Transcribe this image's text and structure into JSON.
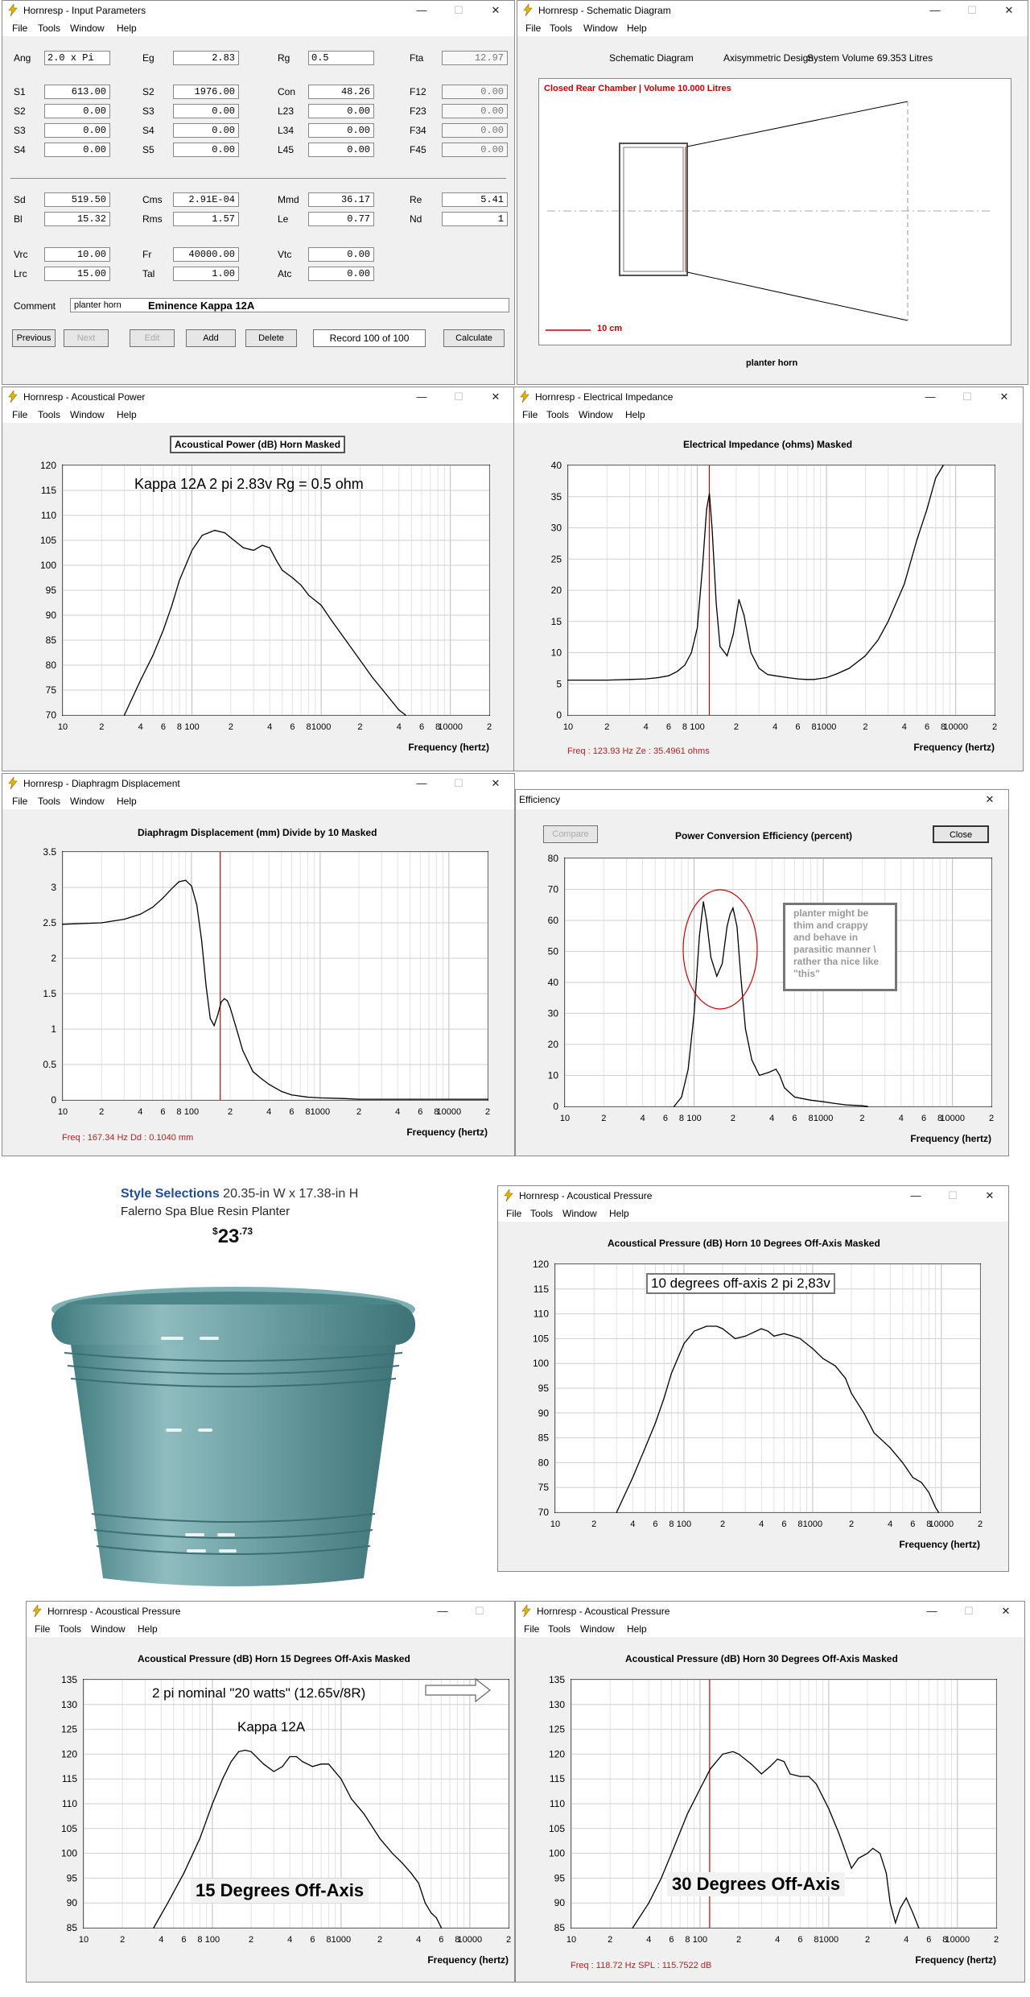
{
  "input_params": {
    "title": "Hornresp - Input Parameters",
    "menu": [
      "File",
      "Tools",
      "Window",
      "Help"
    ],
    "fields": [
      {
        "label": "Ang",
        "value": "2.0 x Pi",
        "row": 0,
        "col": 0
      },
      {
        "label": "Eg",
        "value": "2.83",
        "row": 0,
        "col": 1
      },
      {
        "label": "Rg",
        "value": "0.5",
        "row": 0,
        "col": 2
      },
      {
        "label": "Fta",
        "value": "12.97",
        "row": 0,
        "col": 3,
        "dim": true
      },
      {
        "label": "S1",
        "value": "613.00",
        "row": 1,
        "col": 0
      },
      {
        "label": "S2",
        "value": "1976.00",
        "row": 1,
        "col": 1
      },
      {
        "label": "Con",
        "value": "48.26",
        "row": 1,
        "col": 2
      },
      {
        "label": "F12",
        "value": "0.00",
        "row": 1,
        "col": 3,
        "dim": true
      },
      {
        "label": "S2",
        "value": "0.00",
        "row": 2,
        "col": 0
      },
      {
        "label": "S3",
        "value": "0.00",
        "row": 2,
        "col": 1
      },
      {
        "label": "L23",
        "value": "0.00",
        "row": 2,
        "col": 2
      },
      {
        "label": "F23",
        "value": "0.00",
        "row": 2,
        "col": 3,
        "dim": true
      },
      {
        "label": "S3",
        "value": "0.00",
        "row": 3,
        "col": 0
      },
      {
        "label": "S4",
        "value": "0.00",
        "row": 3,
        "col": 1
      },
      {
        "label": "L34",
        "value": "0.00",
        "row": 3,
        "col": 2
      },
      {
        "label": "F34",
        "value": "0.00",
        "row": 3,
        "col": 3,
        "dim": true
      },
      {
        "label": "S4",
        "value": "0.00",
        "row": 4,
        "col": 0
      },
      {
        "label": "S5",
        "value": "0.00",
        "row": 4,
        "col": 1
      },
      {
        "label": "L45",
        "value": "0.00",
        "row": 4,
        "col": 2
      },
      {
        "label": "F45",
        "value": "0.00",
        "row": 4,
        "col": 3,
        "dim": true
      },
      {
        "label": "Sd",
        "value": "519.50",
        "row": 5,
        "col": 0
      },
      {
        "label": "Cms",
        "value": "2.91E-04",
        "row": 5,
        "col": 1
      },
      {
        "label": "Mmd",
        "value": "36.17",
        "row": 5,
        "col": 2
      },
      {
        "label": "Re",
        "value": "5.41",
        "row": 5,
        "col": 3
      },
      {
        "label": "Bl",
        "value": "15.32",
        "row": 6,
        "col": 0
      },
      {
        "label": "Rms",
        "value": "1.57",
        "row": 6,
        "col": 1
      },
      {
        "label": "Le",
        "value": "0.77",
        "row": 6,
        "col": 2
      },
      {
        "label": "Nd",
        "value": "1",
        "row": 6,
        "col": 3
      },
      {
        "label": "Vrc",
        "value": "10.00",
        "row": 7,
        "col": 0
      },
      {
        "label": "Fr",
        "value": "40000.00",
        "row": 7,
        "col": 1
      },
      {
        "label": "Vtc",
        "value": "0.00",
        "row": 7,
        "col": 2
      },
      {
        "label": "Lrc",
        "value": "15.00",
        "row": 8,
        "col": 0
      },
      {
        "label": "Tal",
        "value": "1.00",
        "row": 8,
        "col": 1
      },
      {
        "label": "Atc",
        "value": "0.00",
        "row": 8,
        "col": 2
      }
    ],
    "comment_label": "Comment",
    "comment_value": "planter horn",
    "comment_bold": "Eminence Kappa 12A",
    "buttons": {
      "previous": "Previous",
      "next": "Next",
      "edit": "Edit",
      "add": "Add",
      "delete": "Delete",
      "record": "Record 100 of 100",
      "calculate": "Calculate"
    }
  },
  "schematic": {
    "title": "Hornresp - Schematic Diagram",
    "menu": [
      "File",
      "Tools",
      "Window",
      "Help"
    ],
    "header": [
      "Schematic Diagram",
      "Axisymmetric Design",
      "System Volume 69.353 Litres"
    ],
    "chamber": "Closed Rear Chamber | Volume 10.000 Litres",
    "scale": "10 cm",
    "caption": "planter horn"
  },
  "freq_ticks": [
    "10",
    "2",
    "4",
    "6",
    "8",
    "100",
    "2",
    "4",
    "6",
    "8",
    "1000",
    "2",
    "4",
    "6",
    "8",
    "10000",
    "2"
  ],
  "xlabel": "Frequency (hertz)",
  "colors": {
    "readout": "#b22222",
    "accent_red": "#cc0000"
  },
  "ap": {
    "title": "Hornresp - Acoustical Power",
    "menu": [
      "File",
      "Tools",
      "Window",
      "Help"
    ],
    "chart_title": "Acoustical Power (dB)  Horn  Masked",
    "note": "Kappa 12A  2 pi  2.83v  Rg = 0.5 ohm"
  },
  "ei": {
    "title": "Hornresp - Electrical Impedance",
    "menu": [
      "File",
      "Tools",
      "Window",
      "Help"
    ],
    "chart_title": "Electrical Impedance (ohms)  Masked",
    "readout": "Freq : 123.93 Hz    Ze : 35.4961 ohms"
  },
  "dd": {
    "title": "Hornresp - Diaphragm Displacement",
    "menu": [
      "File",
      "Tools",
      "Window",
      "Help"
    ],
    "chart_title": "Diaphragm Displacement (mm)  Divide by 10  Masked",
    "readout": "Freq : 167.34 Hz    Dd : 0.1040 mm"
  },
  "eff": {
    "title": "Efficiency",
    "compare": "Compare",
    "close": "Close",
    "chart_title": "Power Conversion Efficiency (percent)",
    "note": "planter might be thim and crappy and behave in parasitic manner \\ rather tha nice like \"this\""
  },
  "product": {
    "brand": "Style Selections",
    "dims": "20.35-in W x 17.38-in H",
    "name": "Falerno Spa Blue Resin Planter",
    "currency": "$",
    "price_whole": "23",
    "price_cents": ".73"
  },
  "p10": {
    "title": "Hornresp - Acoustical Pressure",
    "menu": [
      "File",
      "Tools",
      "Window",
      "Help"
    ],
    "chart_title": "Acoustical Pressure (dB)  Horn  10 Degrees Off-Axis  Masked",
    "note": "10 degrees off-axis  2 pi 2,83v"
  },
  "p15": {
    "title": "Hornresp - Acoustical Pressure",
    "menu": [
      "File",
      "Tools",
      "Window",
      "Help"
    ],
    "chart_title": "Acoustical Pressure (dB)  Horn  15 Degrees Off-Axis  Masked",
    "note1": "2 pi  nominal \"20 watts\"  (12.65v/8R)",
    "note2": "Kappa 12A",
    "big": "15 Degrees Off-Axis"
  },
  "p30": {
    "title": "Hornresp - Acoustical Pressure",
    "menu": [
      "File",
      "Tools",
      "Window",
      "Help"
    ],
    "chart_title": "Acoustical Pressure (dB)  Horn  30 Degrees Off-Axis  Masked",
    "readout": "Freq : 118.72 Hz    SPL : 115.7522 dB",
    "big": "30 Degrees Off-Axis"
  },
  "chart_data": [
    {
      "id": "ap",
      "type": "line",
      "title": "Acoustical Power (dB)  Horn  Masked",
      "xlabel": "Frequency (hertz)",
      "xscale": "log",
      "xlim": [
        10,
        20000
      ],
      "ylim": [
        70,
        120
      ],
      "yticks": [
        70,
        75,
        80,
        85,
        90,
        95,
        100,
        105,
        110,
        115,
        120
      ],
      "series": [
        {
          "x": [
            30,
            40,
            50,
            60,
            70,
            80,
            100,
            120,
            150,
            180,
            200,
            250,
            300,
            350,
            400,
            450,
            500,
            600,
            700,
            800,
            1000,
            1200,
            1500,
            2000,
            2500,
            3000,
            4000,
            4500
          ],
          "y": [
            70,
            77,
            82,
            87,
            92,
            97,
            103,
            106,
            107,
            106.5,
            105.5,
            103.5,
            103,
            104,
            103.5,
            101,
            99,
            97.5,
            96,
            94,
            92,
            89,
            85.5,
            81,
            77.5,
            75,
            71,
            70
          ]
        }
      ]
    },
    {
      "id": "ei",
      "type": "line",
      "title": "Electrical Impedance (ohms)  Masked",
      "xlabel": "Frequency (hertz)",
      "xscale": "log",
      "xlim": [
        10,
        20000
      ],
      "ylim": [
        0,
        40
      ],
      "yticks": [
        0,
        5,
        10,
        15,
        20,
        25,
        30,
        35,
        40
      ],
      "marker_x": 123.93,
      "series": [
        {
          "x": [
            10,
            20,
            30,
            40,
            50,
            60,
            70,
            80,
            90,
            100,
            110,
            118,
            124,
            130,
            140,
            150,
            170,
            190,
            210,
            230,
            260,
            300,
            350,
            400,
            500,
            600,
            700,
            800,
            1000,
            1200,
            1500,
            2000,
            2500,
            3000,
            4000,
            5000,
            6000,
            7000,
            8000
          ],
          "y": [
            5.6,
            5.6,
            5.7,
            5.8,
            6,
            6.3,
            7,
            8,
            10,
            14,
            24,
            33,
            35.5,
            30,
            18,
            11,
            9.5,
            13,
            18.5,
            16,
            10,
            7.5,
            6.5,
            6.3,
            6,
            5.8,
            5.7,
            5.7,
            6,
            6.6,
            7.5,
            9.5,
            12,
            15,
            21,
            28,
            33,
            38,
            40
          ]
        }
      ]
    },
    {
      "id": "dd",
      "type": "line",
      "title": "Diaphragm Displacement (mm)  Divide by 10  Masked",
      "xlabel": "Frequency (hertz)",
      "xscale": "log",
      "xlim": [
        10,
        20000
      ],
      "ylim": [
        0,
        3.5
      ],
      "yticks": [
        0,
        0.5,
        1,
        1.5,
        2,
        2.5,
        3,
        3.5
      ],
      "marker_x": 167.34,
      "series": [
        {
          "x": [
            10,
            20,
            30,
            40,
            50,
            60,
            70,
            80,
            90,
            100,
            110,
            120,
            130,
            140,
            150,
            160,
            170,
            180,
            190,
            200,
            220,
            250,
            300,
            350,
            400,
            500,
            600,
            800,
            1000,
            1500,
            2000,
            5000,
            20000
          ],
          "y": [
            2.48,
            2.5,
            2.55,
            2.62,
            2.72,
            2.85,
            2.98,
            3.08,
            3.1,
            3.02,
            2.75,
            2.25,
            1.6,
            1.15,
            1.05,
            1.2,
            1.38,
            1.43,
            1.4,
            1.3,
            1.05,
            0.7,
            0.4,
            0.3,
            0.22,
            0.12,
            0.07,
            0.04,
            0.03,
            0.02,
            0.01,
            0.01,
            0.01
          ]
        }
      ]
    },
    {
      "id": "eff",
      "type": "line",
      "title": "Power Conversion Efficiency (percent)",
      "xlabel": "Frequency (hertz)",
      "xscale": "log",
      "xlim": [
        10,
        20000
      ],
      "ylim": [
        0,
        80
      ],
      "yticks": [
        0,
        10,
        20,
        30,
        40,
        50,
        60,
        70,
        80
      ],
      "series": [
        {
          "x": [
            70,
            80,
            90,
            100,
            110,
            118,
            125,
            135,
            150,
            165,
            180,
            190,
            200,
            215,
            230,
            250,
            280,
            320,
            380,
            430,
            460,
            500,
            600,
            800,
            1000,
            1200,
            1500,
            2000,
            2200
          ],
          "y": [
            0,
            3,
            12,
            30,
            55,
            66,
            60,
            48,
            42,
            46,
            58,
            62,
            64,
            58,
            42,
            25,
            15,
            10,
            11,
            12,
            10,
            6,
            3,
            2,
            1.5,
            1,
            0.5,
            0.2,
            0
          ]
        }
      ]
    },
    {
      "id": "p10",
      "type": "line",
      "title": "Acoustical Pressure (dB)  Horn  10 Degrees Off-Axis  Masked",
      "xlabel": "Frequency (hertz)",
      "xscale": "log",
      "xlim": [
        10,
        20000
      ],
      "ylim": [
        70,
        120
      ],
      "yticks": [
        70,
        75,
        80,
        85,
        90,
        95,
        100,
        105,
        110,
        115,
        120
      ],
      "series": [
        {
          "x": [
            30,
            40,
            50,
            60,
            70,
            80,
            100,
            120,
            150,
            180,
            200,
            250,
            300,
            400,
            450,
            500,
            600,
            700,
            800,
            1000,
            1200,
            1500,
            1800,
            2000,
            2500,
            3000,
            4000,
            5000,
            6000,
            7000,
            8000,
            9000,
            9500
          ],
          "y": [
            70,
            77,
            83,
            88,
            93,
            98,
            104,
            106.5,
            107.5,
            107.5,
            107,
            105,
            105.5,
            107,
            106.5,
            105.5,
            106,
            105.5,
            105,
            103,
            101,
            99.5,
            97,
            94,
            90,
            86,
            83,
            80,
            77,
            76,
            74,
            71,
            70
          ]
        }
      ]
    },
    {
      "id": "p15",
      "type": "line",
      "title": "Acoustical Pressure (dB)  Horn  15 Degrees Off-Axis  Masked",
      "xlabel": "Frequency (hertz)",
      "xscale": "log",
      "xlim": [
        10,
        20000
      ],
      "ylim": [
        85,
        135
      ],
      "yticks": [
        85,
        90,
        95,
        100,
        105,
        110,
        115,
        120,
        125,
        130,
        135
      ],
      "series": [
        {
          "x": [
            35,
            45,
            60,
            80,
            100,
            120,
            140,
            160,
            180,
            200,
            250,
            300,
            350,
            400,
            450,
            500,
            600,
            700,
            800,
            1000,
            1200,
            1500,
            2000,
            2500,
            3000,
            3500,
            4000,
            4500,
            5000,
            5500,
            6000
          ],
          "y": [
            85,
            90,
            96,
            103,
            110,
            115,
            118.5,
            120.5,
            120.8,
            120.5,
            118,
            116.5,
            117.5,
            119.5,
            119.5,
            118.5,
            117.5,
            118,
            118,
            115,
            111,
            108,
            103,
            100,
            98,
            96,
            94,
            90,
            88,
            87,
            85
          ]
        }
      ]
    },
    {
      "id": "p30",
      "type": "line",
      "title": "Acoustical Pressure (dB)  Horn  30 Degrees Off-Axis  Masked",
      "xlabel": "Frequency (hertz)",
      "xscale": "log",
      "xlim": [
        10,
        20000
      ],
      "ylim": [
        85,
        135
      ],
      "yticks": [
        85,
        90,
        95,
        100,
        105,
        110,
        115,
        120,
        125,
        130,
        135
      ],
      "marker_x": 118.72,
      "series": [
        {
          "x": [
            30,
            40,
            50,
            60,
            80,
            100,
            120,
            150,
            180,
            200,
            250,
            300,
            350,
            400,
            450,
            500,
            600,
            700,
            800,
            1000,
            1200,
            1500,
            1700,
            2000,
            2200,
            2500,
            2800,
            3000,
            3300,
            3600,
            4000,
            4500,
            5000
          ],
          "y": [
            85,
            90,
            95,
            100,
            108,
            113,
            117,
            120,
            120.5,
            120,
            118,
            116,
            117.5,
            119,
            118.5,
            116,
            115.5,
            115.5,
            114,
            109,
            104,
            97,
            99,
            100,
            101,
            100,
            96,
            90,
            86,
            89,
            91,
            88,
            85
          ]
        }
      ]
    }
  ]
}
